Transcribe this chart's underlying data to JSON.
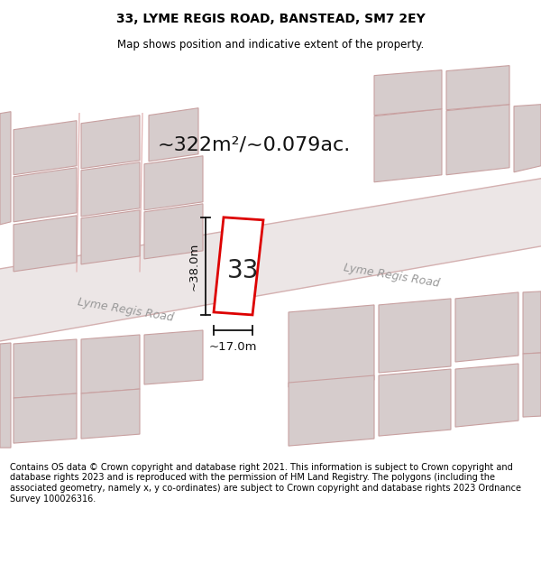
{
  "title": "33, LYME REGIS ROAD, BANSTEAD, SM7 2EY",
  "subtitle": "Map shows position and indicative extent of the property.",
  "area_text": "~322m²/~0.079ac.",
  "dim_width": "~17.0m",
  "dim_height": "~38.0m",
  "label_33": "33",
  "road_label_left": "Lyme Regis Road",
  "road_label_right": "Lyme Regis Road",
  "footer": "Contains OS data © Crown copyright and database right 2021. This information is subject to Crown copyright and database rights 2023 and is reproduced with the permission of HM Land Registry. The polygons (including the associated geometry, namely x, y co-ordinates) are subject to Crown copyright and database rights 2023 Ordnance Survey 100026316.",
  "map_bg": "#f2eded",
  "footer_bg": "#ffffff",
  "plot_edge_color": "#dd0000",
  "plot_fill": "#ffffff",
  "building_fill": "#d6cccc",
  "building_edge": "#c8a0a0",
  "road_fill": "#ece6e6",
  "road_edge": "#d4b0b0",
  "dim_color": "#111111",
  "text_color": "#111111",
  "road_text_color": "#999999",
  "title_fontsize": 10,
  "subtitle_fontsize": 8.5,
  "area_fontsize": 16,
  "label_fontsize": 20,
  "dim_fontsize": 9.5,
  "road_fontsize": 9,
  "footer_fontsize": 7
}
